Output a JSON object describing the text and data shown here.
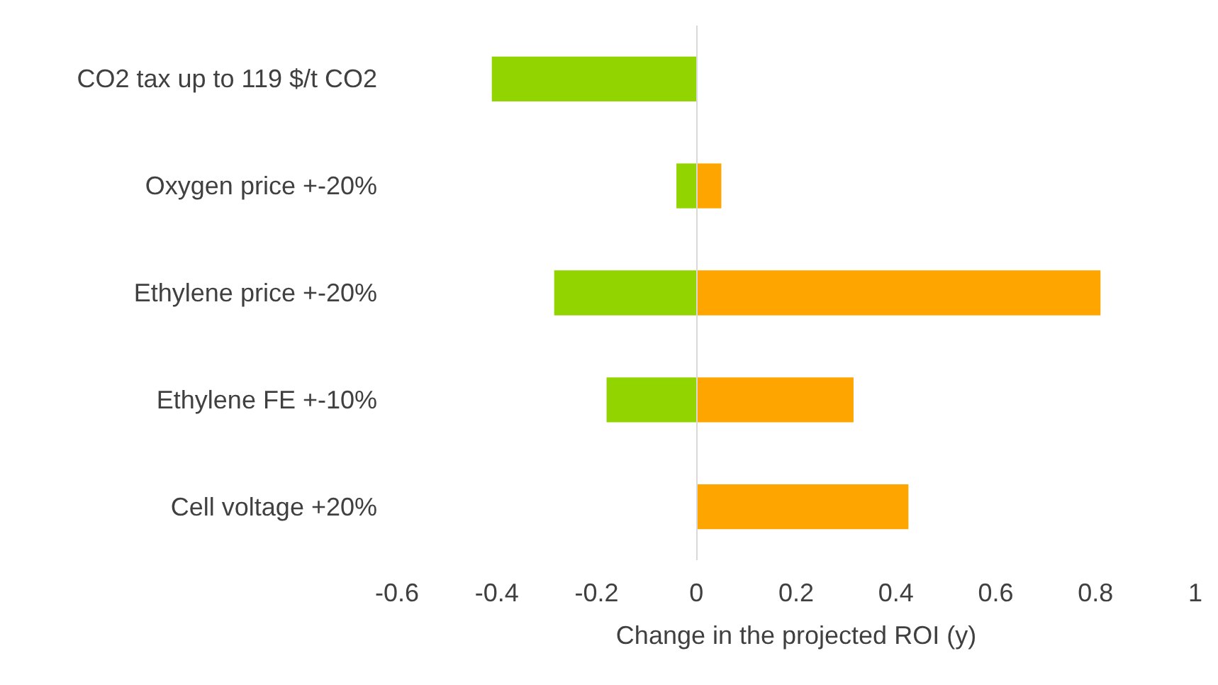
{
  "chart_data": {
    "type": "bar",
    "orientation": "horizontal",
    "stacked": true,
    "xlabel": "Change in the projected ROI (y)",
    "categories": [
      "CO2 tax up to 119 $/t CO2",
      "Oxygen price +-20%",
      "Ethylene price +-20%",
      "Ethylene FE +-10%",
      "Cell voltage +20%"
    ],
    "series": [
      {
        "color": "#92d400",
        "values": [
          -0.41,
          -0.04,
          -0.285,
          -0.18,
          null
        ]
      },
      {
        "color": "#ffa500",
        "values": [
          null,
          0.05,
          0.81,
          0.315,
          0.425
        ]
      }
    ],
    "xlim": [
      -0.6,
      1
    ],
    "xticks": [
      -0.6,
      -0.4,
      -0.2,
      0,
      0.2,
      0.4,
      0.6,
      0.8,
      1
    ],
    "ref_lines": [
      {
        "axis": "x",
        "value": 0,
        "color": "#d9d9d9"
      }
    ]
  }
}
